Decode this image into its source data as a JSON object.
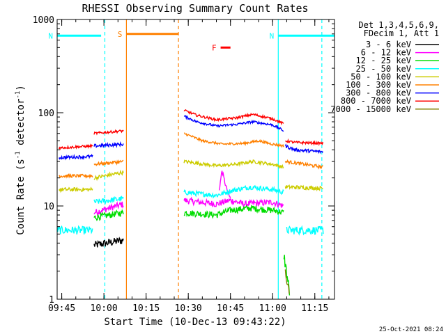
{
  "chart_data": {
    "type": "line",
    "title": "RHESSI Observing Summary Count Rates",
    "xlabel": "Start Time (10-Dec-13 09:43:22)",
    "ylabel_parts": [
      "Count Rate (s",
      "-1",
      " detector",
      "-1",
      ")"
    ],
    "yscale": "log",
    "ylim": [
      1,
      1000
    ],
    "y_ticks": [
      {
        "value": 1,
        "label": "1"
      },
      {
        "value": 10,
        "label": "10"
      },
      {
        "value": 100,
        "label": "100"
      },
      {
        "value": 1000,
        "label": "1000"
      }
    ],
    "xlim": [
      "09:43:22",
      "11:22:00"
    ],
    "x_ticks": [
      {
        "time": "09:45",
        "label": "09:45"
      },
      {
        "time": "10:00",
        "label": "10:00"
      },
      {
        "time": "10:15",
        "label": "10:15"
      },
      {
        "time": "10:30",
        "label": "10:30"
      },
      {
        "time": "10:45",
        "label": "10:45"
      },
      {
        "time": "11:00",
        "label": "11:00"
      },
      {
        "time": "11:15",
        "label": "11:15"
      }
    ],
    "legend": {
      "placement": "right",
      "header": [
        "Det 1,3,4,5,6,9,",
        "FDecim 1, Att 1"
      ],
      "entries": [
        {
          "label": "3 - 6 keV",
          "color": "#000000"
        },
        {
          "label": "6 - 12 keV",
          "color": "#ff00ff"
        },
        {
          "label": "12 - 25 keV",
          "color": "#00dd00"
        },
        {
          "label": "25 - 50 keV",
          "color": "#00ffff"
        },
        {
          "label": "50 - 100 keV",
          "color": "#cccc00"
        },
        {
          "label": "100 - 300 keV",
          "color": "#ff8000"
        },
        {
          "label": "300 - 800 keV",
          "color": "#0000ff"
        },
        {
          "label": "800 - 7000 keV",
          "color": "#ff0000"
        },
        {
          "label": "7000 - 15000 keV",
          "color": "#808000"
        }
      ]
    },
    "flags": [
      {
        "label": "N",
        "color": "#00ffff",
        "y": 670,
        "start": "09:43:22",
        "end": "09:59:00"
      },
      {
        "label": "N",
        "color": "#00ffff",
        "y": 670,
        "start": "11:02:00",
        "end": "11:22:00"
      },
      {
        "label": "S",
        "color": "#ff8000",
        "y": 700,
        "start": "10:08:00",
        "end": "10:26:30"
      },
      {
        "label": "F",
        "color": "#ff0000",
        "y": 500,
        "start": "10:41:30",
        "end": "10:45:00"
      }
    ],
    "vlines": [
      {
        "time": "10:00:20",
        "color": "#00ffff",
        "style": "dashed"
      },
      {
        "time": "10:08:00",
        "color": "#ff8000",
        "style": "solid"
      },
      {
        "time": "10:26:30",
        "color": "#ff8000",
        "style": "dashed"
      },
      {
        "time": "11:02:00",
        "color": "#00ffff",
        "style": "solid"
      },
      {
        "time": "11:17:30",
        "color": "#00ffff",
        "style": "dashed"
      }
    ],
    "gap": {
      "start": "10:07:30",
      "end": "10:28:30"
    },
    "series": [
      {
        "name": "3 - 6 keV",
        "color": "#000000",
        "segments": [
          {
            "x": [
              "09:56:30",
              "10:07:00"
            ],
            "y": [
              3.8,
              4.3
            ],
            "noise": 0.1
          }
        ]
      },
      {
        "name": "6 - 12 keV",
        "color": "#ff00ff",
        "segments": [
          {
            "x": [
              "09:56:30",
              "10:07:00"
            ],
            "y": [
              8.5,
              10.5
            ],
            "noise": 0.08
          },
          {
            "x": [
              "10:28:30",
              "10:40:00",
              "10:45:00",
              "10:50:00",
              "11:00:00",
              "11:04:00"
            ],
            "y": [
              11.5,
              10.5,
              11.5,
              10.5,
              11,
              10
            ],
            "noise": 0.08
          },
          {
            "x": [
              "10:41:00",
              "10:42:00",
              "10:43:00",
              "10:44:00",
              "10:45:00"
            ],
            "y": [
              15,
              24,
              18,
              14,
              12
            ],
            "noise": 0.05
          }
        ]
      },
      {
        "name": "12 - 25 keV",
        "color": "#00dd00",
        "segments": [
          {
            "x": [
              "09:56:30",
              "10:07:00"
            ],
            "y": [
              7.5,
              8.5
            ],
            "noise": 0.08
          },
          {
            "x": [
              "10:28:30",
              "10:40:00",
              "10:45:00",
              "10:52:00",
              "11:00:00",
              "11:04:00"
            ],
            "y": [
              8.5,
              8.0,
              9.0,
              9.5,
              9.0,
              8.5
            ],
            "noise": 0.08
          },
          {
            "x": [
              "11:04:00",
              "11:06:00"
            ],
            "y": [
              3.0,
              1.2
            ],
            "noise": 0.15
          }
        ]
      },
      {
        "name": "25 - 50 keV",
        "color": "#00ffff",
        "segments": [
          {
            "x": [
              "09:43:22",
              "09:56:00"
            ],
            "y": [
              5.5,
              5.5
            ],
            "noise": 0.1
          },
          {
            "x": [
              "09:56:30",
              "10:07:00"
            ],
            "y": [
              11,
              12
            ],
            "noise": 0.07
          },
          {
            "x": [
              "10:28:30",
              "10:40:00",
              "10:45:00",
              "10:52:00",
              "11:00:00",
              "11:04:00"
            ],
            "y": [
              14,
              13,
              14.5,
              16,
              15,
              14
            ],
            "noise": 0.06
          },
          {
            "x": [
              "11:05:00",
              "11:18:00"
            ],
            "y": [
              5.5,
              5.5
            ],
            "noise": 0.1
          }
        ]
      },
      {
        "name": "50 - 100 keV",
        "color": "#cccc00",
        "segments": [
          {
            "x": [
              "09:44:00",
              "09:56:00"
            ],
            "y": [
              15,
              15
            ],
            "noise": 0.05
          },
          {
            "x": [
              "09:56:30",
              "10:07:00"
            ],
            "y": [
              20,
              23
            ],
            "noise": 0.05
          },
          {
            "x": [
              "10:28:30",
              "10:40:00",
              "10:47:00",
              "10:53:00",
              "11:00:00",
              "11:04:00"
            ],
            "y": [
              30,
              27,
              28,
              30,
              28,
              26
            ],
            "noise": 0.04
          },
          {
            "x": [
              "11:04:30",
              "11:18:00"
            ],
            "y": [
              16,
              15.5
            ],
            "noise": 0.05
          }
        ]
      },
      {
        "name": "100 - 300 keV",
        "color": "#ff8000",
        "segments": [
          {
            "x": [
              "09:44:00",
              "09:56:00"
            ],
            "y": [
              21,
              21
            ],
            "noise": 0.04
          },
          {
            "x": [
              "09:56:30",
              "10:07:00"
            ],
            "y": [
              28,
              30
            ],
            "noise": 0.04
          },
          {
            "x": [
              "10:28:30",
              "10:35:00",
              "10:42:00",
              "10:50:00",
              "10:55:00",
              "11:00:00",
              "11:04:00"
            ],
            "y": [
              60,
              50,
              46,
              47,
              50,
              46,
              44
            ],
            "noise": 0.03
          },
          {
            "x": [
              "11:04:30",
              "11:08:00",
              "11:18:00"
            ],
            "y": [
              30,
              29,
              26
            ],
            "noise": 0.04
          }
        ]
      },
      {
        "name": "300 - 800 keV",
        "color": "#0000ff",
        "segments": [
          {
            "x": [
              "09:44:00",
              "09:56:00"
            ],
            "y": [
              33,
              34
            ],
            "noise": 0.04
          },
          {
            "x": [
              "09:56:30",
              "10:07:00"
            ],
            "y": [
              44,
              46
            ],
            "noise": 0.04
          },
          {
            "x": [
              "10:28:30",
              "10:33:00",
              "10:40:00",
              "10:47:00",
              "10:53:00",
              "11:00:00",
              "11:04:00"
            ],
            "y": [
              92,
              80,
              72,
              75,
              80,
              74,
              64
            ],
            "noise": 0.03
          },
          {
            "x": [
              "11:04:30",
              "11:08:00",
              "11:18:00"
            ],
            "y": [
              44,
              40,
              38
            ],
            "noise": 0.04
          }
        ]
      },
      {
        "name": "800 - 7000 keV",
        "color": "#ff0000",
        "segments": [
          {
            "x": [
              "09:44:00",
              "09:56:00"
            ],
            "y": [
              42,
              44
            ],
            "noise": 0.03
          },
          {
            "x": [
              "09:56:30",
              "10:07:00"
            ],
            "y": [
              60,
              64
            ],
            "noise": 0.03
          },
          {
            "x": [
              "10:28:30",
              "10:33:00",
              "10:40:00",
              "10:47:00",
              "10:53:00",
              "11:00:00",
              "11:04:00"
            ],
            "y": [
              106,
              94,
              84,
              88,
              96,
              86,
              76
            ],
            "noise": 0.03
          },
          {
            "x": [
              "11:04:30",
              "11:08:00",
              "11:18:00"
            ],
            "y": [
              50,
              48,
              47
            ],
            "noise": 0.03
          }
        ]
      },
      {
        "name": "7000 - 15000 keV",
        "color": "#808000",
        "segments": [
          {
            "x": [
              "11:04:30",
              "11:06:00"
            ],
            "y": [
              2.0,
              1.1
            ],
            "noise": 0.1
          }
        ]
      }
    ]
  },
  "footer": {
    "timestamp": "25-Oct-2021 08:24"
  }
}
